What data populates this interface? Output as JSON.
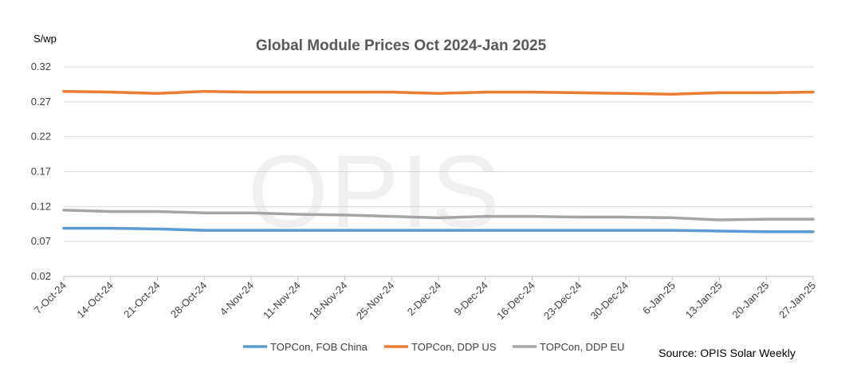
{
  "chart_data": {
    "type": "line",
    "title": "Global Module Prices Oct 2024-Jan 2025",
    "ylabel": "S/wp",
    "xlabel": "",
    "ylim": [
      0.02,
      0.32
    ],
    "yticks": [
      "0.02",
      "0.07",
      "0.12",
      "0.17",
      "0.22",
      "0.27",
      "0.32"
    ],
    "ytick_values": [
      0.02,
      0.07,
      0.12,
      0.17,
      0.22,
      0.27,
      0.32
    ],
    "grid": true,
    "categories": [
      "7-Oct-24",
      "14-Oct-24",
      "21-Oct-24",
      "28-Oct-24",
      "4-Nov-24",
      "11-Nov-24",
      "18-Nov-24",
      "25-Nov-24",
      "2-Dec-24",
      "9-Dec-24",
      "16-Dec-24",
      "23-Dec-24",
      "30-Dec-24",
      "6-Jan-25",
      "13-Jan-25",
      "20-Jan-25",
      "27-Jan-25"
    ],
    "series": [
      {
        "name": "TOPCon, FOB China",
        "color": "#5b9bd5",
        "values": [
          0.089,
          0.089,
          0.088,
          0.086,
          0.086,
          0.086,
          0.086,
          0.086,
          0.086,
          0.086,
          0.086,
          0.086,
          0.086,
          0.086,
          0.085,
          0.084,
          0.084
        ]
      },
      {
        "name": "TOPCon, DDP US",
        "color": "#ed7d31",
        "values": [
          0.285,
          0.284,
          0.282,
          0.285,
          0.284,
          0.284,
          0.284,
          0.284,
          0.282,
          0.284,
          0.284,
          0.283,
          0.282,
          0.281,
          0.283,
          0.283,
          0.284
        ]
      },
      {
        "name": "TOPCon, DDP EU",
        "color": "#a5a5a5",
        "values": [
          0.115,
          0.113,
          0.113,
          0.111,
          0.111,
          0.109,
          0.108,
          0.106,
          0.104,
          0.106,
          0.106,
          0.105,
          0.105,
          0.104,
          0.101,
          0.102,
          0.102
        ]
      }
    ],
    "legend_position": "bottom",
    "watermark": "OPIS",
    "source": "Source: OPIS Solar Weekly"
  }
}
